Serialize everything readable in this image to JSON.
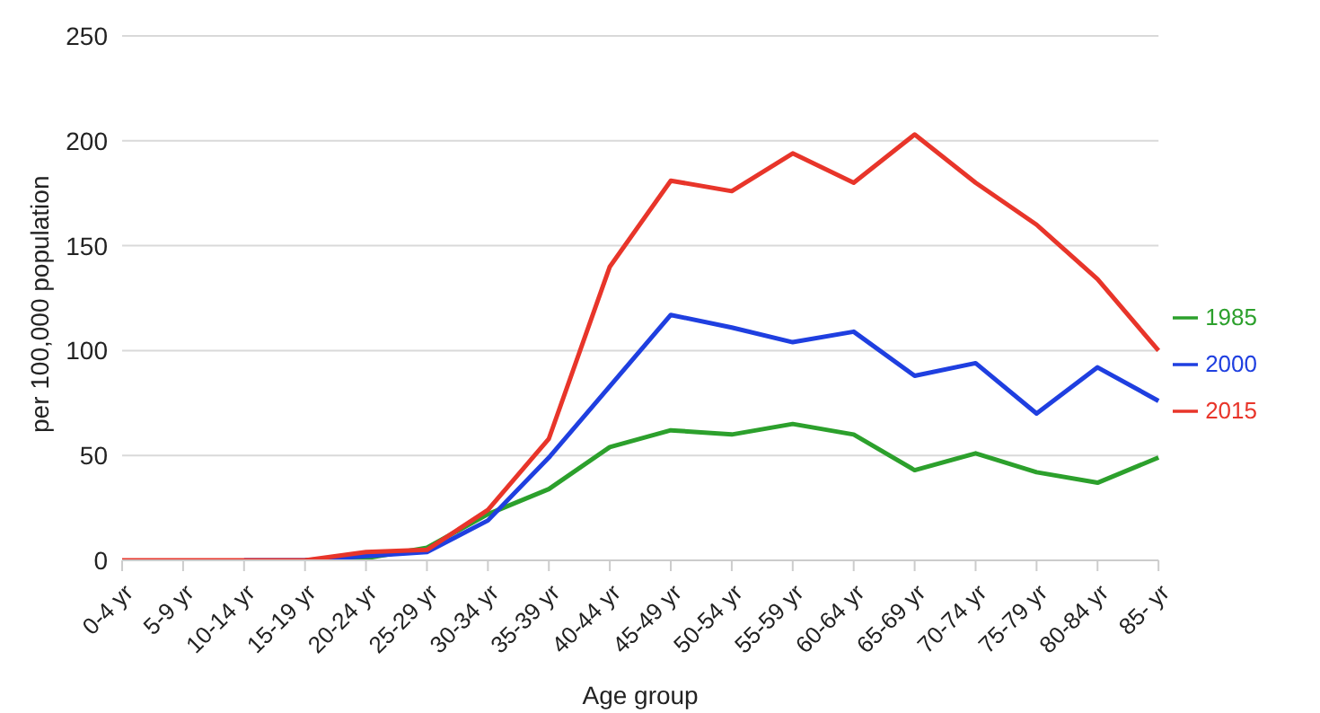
{
  "chart_data": {
    "type": "line",
    "xlabel": "Age group",
    "ylabel": "per 100,000 population",
    "categories": [
      "0-4 yr",
      "5-9 yr",
      "10-14 yr",
      "15-19 yr",
      "20-24 yr",
      "25-29 yr",
      "30-34 yr",
      "35-39 yr",
      "40-44 yr",
      "45-49 yr",
      "50-54 yr",
      "55-59 yr",
      "60-64 yr",
      "65-69 yr",
      "70-74 yr",
      "75-79 yr",
      "80-84 yr",
      "85- yr"
    ],
    "series": [
      {
        "name": "1985",
        "color": "#2ca02c",
        "values": [
          null,
          null,
          null,
          0,
          1,
          6,
          22,
          34,
          54,
          62,
          60,
          65,
          60,
          43,
          51,
          42,
          37,
          49
        ]
      },
      {
        "name": "2000",
        "color": "#1f3fe0",
        "values": [
          null,
          null,
          0,
          0,
          2,
          4,
          19,
          49,
          83,
          117,
          111,
          104,
          109,
          88,
          94,
          70,
          92,
          76
        ]
      },
      {
        "name": "2015",
        "color": "#e8352a",
        "values": [
          0,
          0,
          0,
          0,
          4,
          5,
          24,
          58,
          140,
          181,
          176,
          194,
          180,
          203,
          180,
          160,
          134,
          100
        ]
      }
    ],
    "ylim": [
      0,
      250
    ],
    "yticks": [
      0,
      50,
      100,
      150,
      200,
      250
    ],
    "grid": "y",
    "legend": "right",
    "marker": "none",
    "line_style": "solid"
  }
}
